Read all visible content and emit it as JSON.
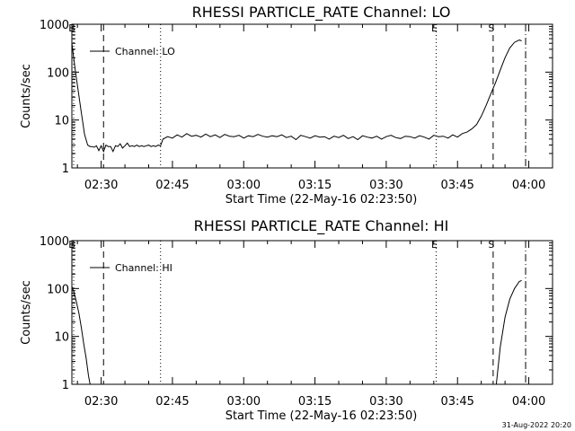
{
  "footer": {
    "timestamp": "31-Aug-2022 20:20"
  },
  "chart_data": [
    {
      "type": "line",
      "title": "RHESSI PARTICLE_RATE Channel: LO",
      "xlabel": "Start Time (22-May-16 02:23:50)",
      "ylabel": "Counts/sec",
      "y_scale": "log",
      "ylim": [
        1,
        1000
      ],
      "y_ticks": [
        "1",
        "10",
        "100",
        "1000"
      ],
      "x_range": [
        "02:23:50",
        "04:05:00"
      ],
      "x_ticks": [
        "02:30",
        "02:45",
        "03:00",
        "03:15",
        "03:30",
        "03:45",
        "04:00"
      ],
      "legend": {
        "position": "top-left"
      },
      "grid": false,
      "series": [
        {
          "name": "Channel: LO",
          "x": [
            "02:23:50",
            "02:24:30",
            "02:25:10",
            "02:25:50",
            "02:26:30",
            "02:27:10",
            "02:27:40",
            "02:28:00",
            "02:28:30",
            "02:29:00",
            "02:29:30",
            "02:30:00",
            "02:30:30",
            "02:31:00",
            "02:31:30",
            "02:32:00",
            "02:32:30",
            "02:33:00",
            "02:33:30",
            "02:34:00",
            "02:34:30",
            "02:35:00",
            "02:35:30",
            "02:36:00",
            "02:36:30",
            "02:37:00",
            "02:37:30",
            "02:38:00",
            "02:38:30",
            "02:39:00",
            "02:39:30",
            "02:40:00",
            "02:40:30",
            "02:41:00",
            "02:41:30",
            "02:42:00",
            "02:42:30",
            "02:43:00",
            "02:44:00",
            "02:45:00",
            "02:46:00",
            "02:47:00",
            "02:48:00",
            "02:49:00",
            "02:50:00",
            "02:51:00",
            "02:52:00",
            "02:53:00",
            "02:54:00",
            "02:55:00",
            "02:56:00",
            "02:57:00",
            "02:58:00",
            "02:59:00",
            "03:00:00",
            "03:01:00",
            "03:02:00",
            "03:03:00",
            "03:04:00",
            "03:05:00",
            "03:06:00",
            "03:07:00",
            "03:08:00",
            "03:09:00",
            "03:10:00",
            "03:11:00",
            "03:12:00",
            "03:13:00",
            "03:14:00",
            "03:15:00",
            "03:16:00",
            "03:17:00",
            "03:18:00",
            "03:19:00",
            "03:20:00",
            "03:21:00",
            "03:22:00",
            "03:23:00",
            "03:24:00",
            "03:25:00",
            "03:26:00",
            "03:27:00",
            "03:28:00",
            "03:29:00",
            "03:30:00",
            "03:31:00",
            "03:32:00",
            "03:33:00",
            "03:34:00",
            "03:35:00",
            "03:36:00",
            "03:37:00",
            "03:38:00",
            "03:39:00",
            "03:40:00",
            "03:41:00",
            "03:42:00",
            "03:43:00",
            "03:44:00",
            "03:45:00",
            "03:46:00",
            "03:47:00",
            "03:48:00",
            "03:49:00",
            "03:50:00",
            "03:51:00",
            "03:52:00",
            "03:53:00",
            "03:54:00",
            "03:55:00",
            "03:56:00",
            "03:57:00",
            "03:58:00",
            "03:58:30"
          ],
          "values": [
            400,
            120,
            40,
            14,
            5,
            3,
            2.8,
            2.8,
            2.7,
            2.9,
            2.3,
            2.9,
            2.2,
            3.0,
            2.8,
            2.8,
            2.2,
            2.9,
            2.8,
            3.2,
            2.6,
            2.9,
            3.3,
            2.8,
            2.9,
            2.8,
            3.0,
            2.8,
            2.9,
            2.8,
            2.9,
            3.0,
            2.8,
            2.9,
            2.8,
            3.0,
            2.9,
            4.0,
            4.5,
            4.2,
            4.9,
            4.4,
            5.2,
            4.6,
            4.8,
            4.4,
            5.1,
            4.5,
            4.9,
            4.3,
            5.0,
            4.6,
            4.5,
            4.8,
            4.2,
            4.7,
            4.5,
            5.0,
            4.6,
            4.4,
            4.7,
            4.5,
            4.9,
            4.3,
            4.6,
            3.9,
            4.8,
            4.5,
            4.2,
            4.7,
            4.4,
            4.5,
            4.0,
            4.6,
            4.3,
            4.8,
            4.1,
            4.5,
            3.9,
            4.7,
            4.4,
            4.2,
            4.6,
            4.0,
            4.5,
            4.8,
            4.3,
            4.1,
            4.6,
            4.5,
            4.2,
            4.7,
            4.4,
            4.0,
            4.8,
            4.5,
            4.6,
            4.2,
            4.9,
            4.4,
            5.2,
            5.6,
            6.5,
            8,
            12,
            20,
            35,
            60,
            110,
            200,
            320,
            420,
            470,
            450
          ]
        }
      ],
      "annotations": {
        "markers": [
          {
            "label": "B",
            "time": "02:23:50",
            "style": "dotted"
          },
          {
            "label": "",
            "time": "02:30:30",
            "style": "dashed"
          },
          {
            "label": "",
            "time": "02:42:30",
            "style": "dotted"
          },
          {
            "label": "E",
            "time": "03:40:30",
            "style": "dotted"
          },
          {
            "label": "S",
            "time": "03:52:30",
            "style": "dashed"
          },
          {
            "label": "",
            "time": "03:59:20",
            "style": "dashdot"
          }
        ]
      }
    },
    {
      "type": "line",
      "title": "RHESSI PARTICLE_RATE Channel: HI",
      "xlabel": "Start Time (22-May-16 02:23:50)",
      "ylabel": "Counts/sec",
      "y_scale": "log",
      "ylim": [
        1,
        1000
      ],
      "y_ticks": [
        "1",
        "10",
        "100",
        "1000"
      ],
      "x_range": [
        "02:23:50",
        "04:05:00"
      ],
      "x_ticks": [
        "02:30",
        "02:45",
        "03:00",
        "03:15",
        "03:30",
        "03:45",
        "04:00"
      ],
      "legend": {
        "position": "top-left"
      },
      "grid": false,
      "series": [
        {
          "name": "Channel: HI",
          "segments": [
            {
              "x": [
                "02:23:50",
                "02:24:20",
                "02:24:50",
                "02:25:20",
                "02:25:50",
                "02:26:20",
                "02:26:50",
                "02:27:20",
                "02:27:40"
              ],
              "values": [
                110,
                80,
                50,
                30,
                15,
                7,
                3.5,
                1.5,
                1
              ]
            },
            {
              "x": [
                "03:53:10",
                "03:54:00",
                "03:55:00",
                "03:56:00",
                "03:57:00",
                "03:58:00",
                "03:58:30"
              ],
              "values": [
                1,
                6,
                25,
                60,
                100,
                140,
                148
              ]
            }
          ]
        }
      ],
      "annotations": {
        "markers": [
          {
            "label": "B",
            "time": "02:23:50",
            "style": "dotted"
          },
          {
            "label": "",
            "time": "02:30:30",
            "style": "dashed"
          },
          {
            "label": "",
            "time": "02:42:30",
            "style": "dotted"
          },
          {
            "label": "E",
            "time": "03:40:30",
            "style": "dotted"
          },
          {
            "label": "S",
            "time": "03:52:30",
            "style": "dashed"
          },
          {
            "label": "",
            "time": "03:59:20",
            "style": "dashdot"
          }
        ]
      }
    }
  ]
}
